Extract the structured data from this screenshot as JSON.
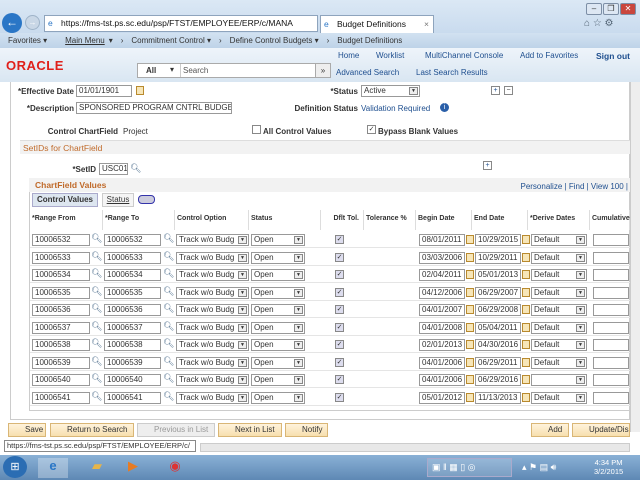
{
  "browser": {
    "url": "https://fms-tst.ps.sc.edu/psp/FTST/EMPLOYEE/ERP/c/MANA",
    "tab": "Budget Definitions",
    "status_url": "https://fms-tst.ps.sc.edu/psp/FTST/EMPLOYEE/ERP/c/"
  },
  "nav": {
    "favorites": "Favorites ▾",
    "main_menu": "Main Menu",
    "crumbs": [
      "Commitment Control ▾",
      "Define Control Budgets ▾",
      "Budget Definitions"
    ]
  },
  "header": {
    "links": [
      "Home",
      "Worklist",
      "MultiChannel Console",
      "Add to Favorites",
      "Sign out"
    ],
    "logo": "ORACLE",
    "search_scope": "All",
    "search_placeholder": "Search",
    "advanced_search": "Advanced Search",
    "last_search": "Last Search Results"
  },
  "form": {
    "effective_date_label": "*Effective Date",
    "effective_date": "01/01/1901",
    "status_label": "*Status",
    "status": "Active",
    "description_label": "*Description",
    "description": "SPONSORED PROGRAM CNTRL BUDGET",
    "def_status_label": "Definition Status",
    "def_status": "Validation Required",
    "control_cf_label": "Control ChartField",
    "control_cf": "Project",
    "all_control_values": "All Control Values",
    "all_control_values_checked": false,
    "bypass_blank": "Bypass Blank Values",
    "bypass_blank_checked": true
  },
  "setids": {
    "title": "SetIDs for ChartField",
    "setid_label": "*SetID",
    "setid": "USC01"
  },
  "grid": {
    "title": "ChartField Values",
    "personalize": "Personalize",
    "find": "Find",
    "view": "View 100",
    "tabs": [
      "Control Values",
      "Status"
    ],
    "columns": [
      "*Range From",
      "*Range To",
      "Control Option",
      "Status",
      "Dflt Tol.",
      "Tolerance %",
      "Begin Date",
      "End Date",
      "*Derive Dates",
      "Cumulative"
    ],
    "rows": [
      [
        "10006532",
        "10006532",
        "Track w/o Budg",
        "Open",
        true,
        "",
        "08/01/2011",
        "10/29/2015",
        "Default",
        ""
      ],
      [
        "10006533",
        "10006533",
        "Track w/o Budg",
        "Open",
        true,
        "",
        "03/03/2006",
        "10/29/2011",
        "Default",
        ""
      ],
      [
        "10006534",
        "10006534",
        "Track w/o Budg",
        "Open",
        true,
        "",
        "02/04/2011",
        "05/01/2013",
        "Default",
        ""
      ],
      [
        "10006535",
        "10006535",
        "Track w/o Budg",
        "Open",
        true,
        "",
        "04/12/2006",
        "06/29/2007",
        "Default",
        ""
      ],
      [
        "10006536",
        "10006536",
        "Track w/o Budg",
        "Open",
        true,
        "",
        "04/01/2007",
        "06/29/2008",
        "Default",
        ""
      ],
      [
        "10006537",
        "10006537",
        "Track w/o Budg",
        "Open",
        true,
        "",
        "04/01/2008",
        "05/04/2011",
        "Default",
        ""
      ],
      [
        "10006538",
        "10006538",
        "Track w/o Budg",
        "Open",
        true,
        "",
        "02/01/2013",
        "04/30/2016",
        "Default",
        ""
      ],
      [
        "10006539",
        "10006539",
        "Track w/o Budg",
        "Open",
        true,
        "",
        "04/01/2006",
        "06/29/2011",
        "Default",
        ""
      ],
      [
        "10006540",
        "10006540",
        "Track w/o Budg",
        "Open",
        true,
        "",
        "04/01/2006",
        "06/29/2016",
        "",
        ""
      ],
      [
        "10006541",
        "10006541",
        "Track w/o Budg",
        "Open",
        true,
        "",
        "05/01/2012",
        "11/13/2013",
        "Default",
        ""
      ]
    ]
  },
  "buttons": {
    "save": "Save",
    "return": "Return to Search",
    "previous": "Previous in List",
    "next": "Next in List",
    "notify": "Notify",
    "add": "Add",
    "update": "Update/Disp"
  },
  "taskbar": {
    "time": "4:34 PM",
    "date": "3/2/2015"
  }
}
